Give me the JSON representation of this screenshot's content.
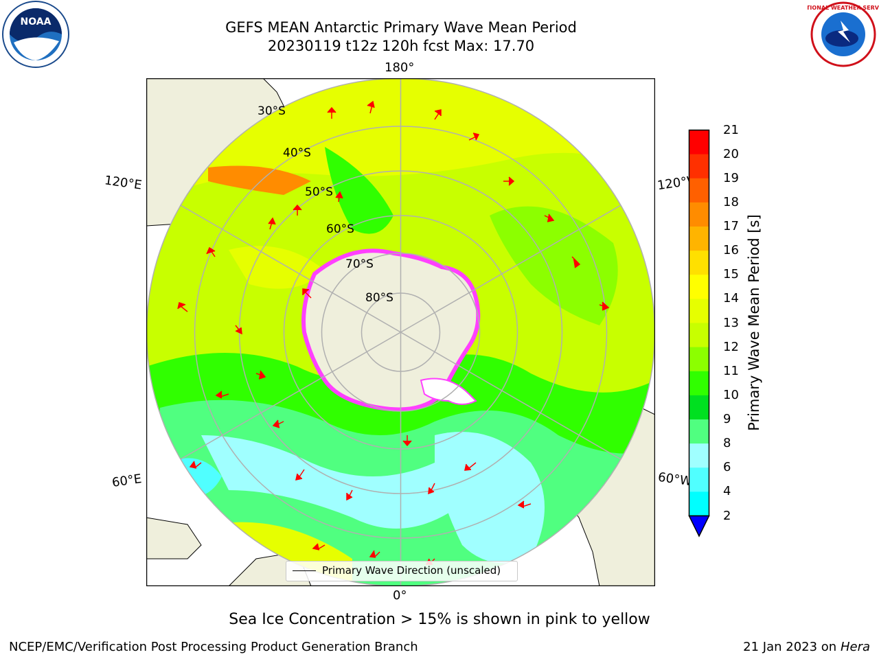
{
  "title": {
    "line1": "GEFS MEAN Antarctic Primary Wave Mean Period",
    "line2": "20230119 t12z 120h fcst   Max: 17.70"
  },
  "map": {
    "longitude_labels": {
      "top": "180°",
      "bottom": "0°",
      "left_upper": "120°E",
      "left_lower": "60°E",
      "right_upper": "120°W",
      "right_lower": "60°W"
    },
    "latitude_labels": [
      "30°S",
      "40°S",
      "50°S",
      "60°S",
      "70°S",
      "80°S"
    ],
    "legend_label": "Primary Wave Direction (unscaled)"
  },
  "colorbar": {
    "label": "Primary Wave Mean Period [s]",
    "ticks": [
      "21",
      "20",
      "19",
      "18",
      "17",
      "16",
      "15",
      "14",
      "13",
      "12",
      "11",
      "10",
      "9",
      "8",
      "6",
      "4",
      "2"
    ],
    "colors": [
      "#ff0000",
      "#ff3000",
      "#ff6000",
      "#ff8c00",
      "#ffb400",
      "#ffe000",
      "#ffff00",
      "#e6ff00",
      "#c8ff00",
      "#8cff00",
      "#30ff00",
      "#00e020",
      "#50ff80",
      "#a0ffff",
      "#50ffff",
      "#00ffff",
      "#00c8ff",
      "#0070ff",
      "#0000ff"
    ]
  },
  "logos": {
    "noaa_text": "NOAA",
    "nws_text": "NATIONAL WEATHER SERVICE"
  },
  "footer": {
    "note": "Sea Ice Concentration > 15% is shown in pink to yellow",
    "credit_left": "NCEP/EMC/Verification Post Processing Product Generation Branch",
    "credit_right_date": "21 Jan 2023 on ",
    "credit_right_host": "Hera"
  }
}
